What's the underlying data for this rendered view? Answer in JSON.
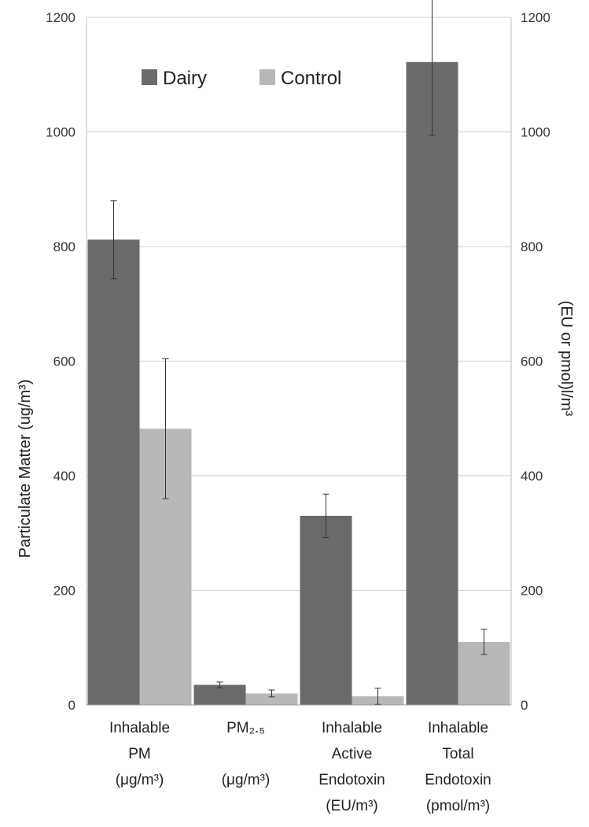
{
  "chart_data": {
    "type": "bar",
    "categories": [
      [
        "Inhalable",
        "PM",
        "(μg/m³)"
      ],
      [
        "PM₂.₅",
        "",
        "(μg/m³)"
      ],
      [
        "Inhalable",
        "Active",
        "Endotoxin",
        "(EU/m³)"
      ],
      [
        "Inhalable",
        "Total",
        "Endotoxin",
        "(pmol/m³)"
      ]
    ],
    "series": [
      {
        "name": "Dairy",
        "color": "#6a6a6a",
        "values": [
          812,
          35,
          330,
          1122
        ],
        "error": [
          68,
          5,
          38,
          128
        ]
      },
      {
        "name": "Control",
        "color": "#b8b8b8",
        "values": [
          482,
          20,
          15,
          110
        ],
        "error": [
          122,
          6,
          14,
          22
        ]
      }
    ],
    "ylabel_left": "Particulate Matter (ug/m³)",
    "ylabel_right": "(EU or pmol)l/m³",
    "ylim": [
      0,
      1200
    ],
    "yticks": [
      "0",
      "200",
      "400",
      "600",
      "800",
      "1000",
      "1200"
    ],
    "grid": true,
    "legend_position": "top-left"
  }
}
